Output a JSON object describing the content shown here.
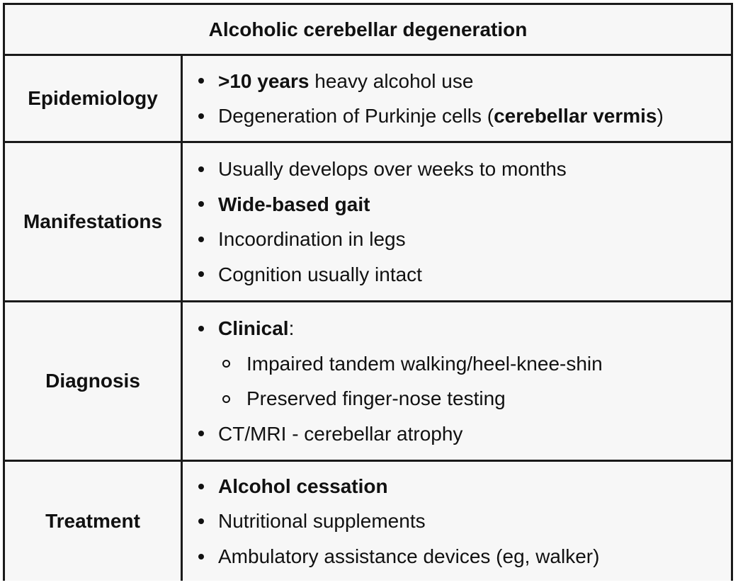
{
  "title": "Alcoholic cerebellar degeneration",
  "rows": [
    {
      "label": "Epidemiology",
      "items": [
        {
          "bold": ">10 years",
          "text": " heavy alcohol use"
        },
        {
          "text": "Degeneration of Purkinje cells (",
          "bold": "cerebellar vermis",
          "tail": ")"
        }
      ]
    },
    {
      "label": "Manifestations",
      "items": [
        {
          "text": "Usually develops over weeks to months"
        },
        {
          "bold": "Wide-based gait"
        },
        {
          "text": "Incoordination in legs"
        },
        {
          "text": "Cognition usually intact"
        }
      ]
    },
    {
      "label": "Diagnosis",
      "items": [
        {
          "bold": "Clinical",
          "text": ":"
        },
        {
          "text": "Impaired tandem walking/heel-knee-shin",
          "sub": true
        },
        {
          "text": "Preserved finger-nose testing",
          "sub": true
        },
        {
          "text": "CT/MRI - cerebellar atrophy"
        }
      ]
    },
    {
      "label": "Treatment",
      "items": [
        {
          "bold": "Alcohol cessation"
        },
        {
          "text": "Nutritional supplements"
        },
        {
          "text": "Ambulatory assistance devices (eg, walker)"
        }
      ]
    }
  ]
}
